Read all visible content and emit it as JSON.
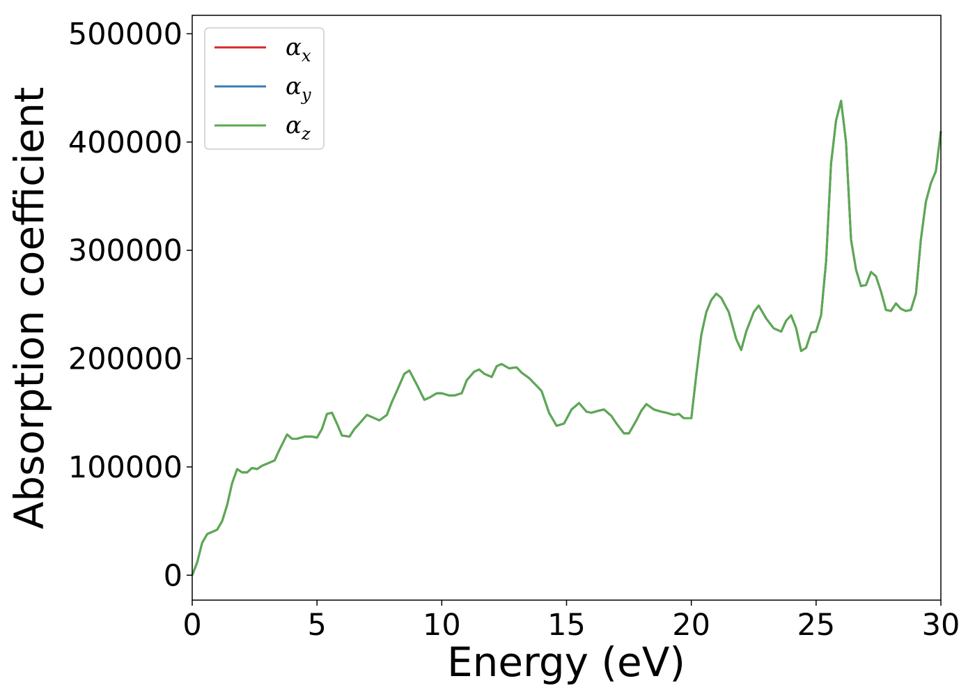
{
  "chart_data": {
    "type": "line",
    "title": "",
    "xlabel": "Energy (eV)",
    "ylabel": "Absorption coefficient",
    "xlim": [
      0,
      30
    ],
    "ylim": [
      -23000,
      517000
    ],
    "xticks": [
      0,
      5,
      10,
      15,
      20,
      25,
      30
    ],
    "yticks": [
      0,
      100000,
      200000,
      300000,
      400000,
      500000
    ],
    "xtick_labels": [
      "0",
      "5",
      "10",
      "15",
      "20",
      "25",
      "30"
    ],
    "ytick_labels": [
      "0",
      "100000",
      "200000",
      "300000",
      "400000",
      "500000"
    ],
    "grid": false,
    "legend": "top-left",
    "series": [
      {
        "name": "α",
        "subscript": "x",
        "color": "#d62728"
      },
      {
        "name": "α",
        "subscript": "y",
        "color": "#3a7bb5"
      },
      {
        "name": "α",
        "subscript": "z",
        "color": "#5aaa50"
      }
    ],
    "x": [
      0,
      0.2,
      0.4,
      0.6,
      0.8,
      1.0,
      1.2,
      1.4,
      1.6,
      1.8,
      2.0,
      2.2,
      2.4,
      2.6,
      2.8,
      3.0,
      3.3,
      3.5,
      3.8,
      4.0,
      4.2,
      4.5,
      4.8,
      5.0,
      5.2,
      5.4,
      5.6,
      5.8,
      6.0,
      6.3,
      6.5,
      6.7,
      7.0,
      7.2,
      7.5,
      7.8,
      8.0,
      8.2,
      8.5,
      8.7,
      9.0,
      9.3,
      9.5,
      9.8,
      10.0,
      10.3,
      10.5,
      10.8,
      11.0,
      11.3,
      11.5,
      11.7,
      12.0,
      12.2,
      12.4,
      12.7,
      13.0,
      13.2,
      13.5,
      13.8,
      14.0,
      14.3,
      14.6,
      14.9,
      15.2,
      15.5,
      15.8,
      16.0,
      16.3,
      16.5,
      16.8,
      17.0,
      17.3,
      17.5,
      17.8,
      18.0,
      18.2,
      18.5,
      18.8,
      19.0,
      19.3,
      19.5,
      19.7,
      20.0,
      20.2,
      20.4,
      20.6,
      20.8,
      21.0,
      21.2,
      21.5,
      21.8,
      22.0,
      22.2,
      22.5,
      22.7,
      23.0,
      23.3,
      23.6,
      23.8,
      24.0,
      24.2,
      24.4,
      24.6,
      24.8,
      25.0,
      25.2,
      25.4,
      25.6,
      25.8,
      26.0,
      26.2,
      26.4,
      26.6,
      26.8,
      27.0,
      27.2,
      27.4,
      27.6,
      27.8,
      28.0,
      28.2,
      28.4,
      28.6,
      28.8,
      29.0,
      29.2,
      29.4,
      29.6,
      29.8,
      30.0
    ],
    "y": [
      0,
      12000,
      30000,
      38000,
      40000,
      42000,
      50000,
      65000,
      85000,
      98000,
      95000,
      95000,
      99000,
      98000,
      101000,
      103000,
      106000,
      116000,
      130000,
      126000,
      126000,
      128000,
      128000,
      127000,
      135000,
      149000,
      150000,
      140000,
      129000,
      128000,
      135000,
      140000,
      148000,
      146000,
      143000,
      148000,
      160000,
      170000,
      186000,
      189000,
      176000,
      162000,
      164000,
      168000,
      168000,
      166000,
      166000,
      168000,
      180000,
      188000,
      190000,
      186000,
      183000,
      193000,
      195000,
      191000,
      192000,
      187000,
      182000,
      175000,
      170000,
      150000,
      138000,
      140000,
      153000,
      159000,
      151000,
      150000,
      152000,
      153000,
      147000,
      140000,
      131000,
      131000,
      143000,
      152000,
      158000,
      153000,
      151000,
      150000,
      148000,
      149000,
      145000,
      145000,
      185000,
      222000,
      243000,
      254000,
      260000,
      256000,
      243000,
      218000,
      208000,
      225000,
      243000,
      249000,
      237000,
      228000,
      225000,
      235000,
      240000,
      228000,
      207000,
      210000,
      224000,
      225000,
      240000,
      290000,
      380000,
      420000,
      438000,
      400000,
      310000,
      282000,
      267000,
      268000,
      280000,
      276000,
      262000,
      245000,
      244000,
      251000,
      246000,
      244000,
      245000,
      260000,
      310000,
      345000,
      362000,
      373000,
      410000
    ]
  }
}
